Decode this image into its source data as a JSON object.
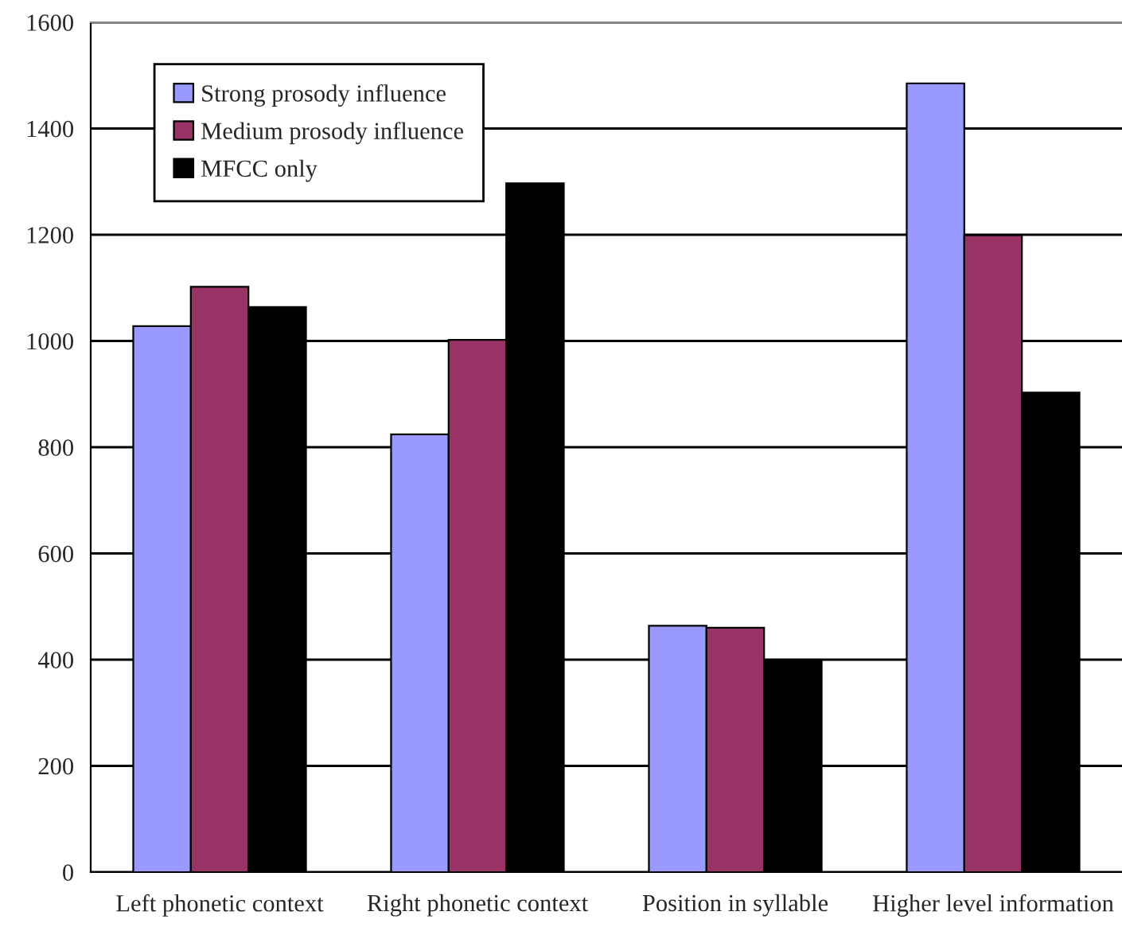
{
  "chart_data": {
    "type": "bar",
    "categories": [
      "Left phonetic context",
      "Right phonetic context",
      "Position in syllable",
      "Higher level information"
    ],
    "series": [
      {
        "name": "Strong prosody influence",
        "color": "#9999ff",
        "values": [
          1028,
          824,
          464,
          1485
        ]
      },
      {
        "name": "Medium prosody influence",
        "color": "#993366",
        "values": [
          1102,
          1002,
          460,
          1199
        ]
      },
      {
        "name": "MFCC only",
        "color": "#000000",
        "values": [
          1064,
          1297,
          400,
          903
        ]
      }
    ],
    "ylim": [
      0,
      1600
    ],
    "yticks": [
      0,
      200,
      400,
      600,
      800,
      1000,
      1200,
      1400,
      1600
    ],
    "grid": "y",
    "legend": "top left"
  }
}
